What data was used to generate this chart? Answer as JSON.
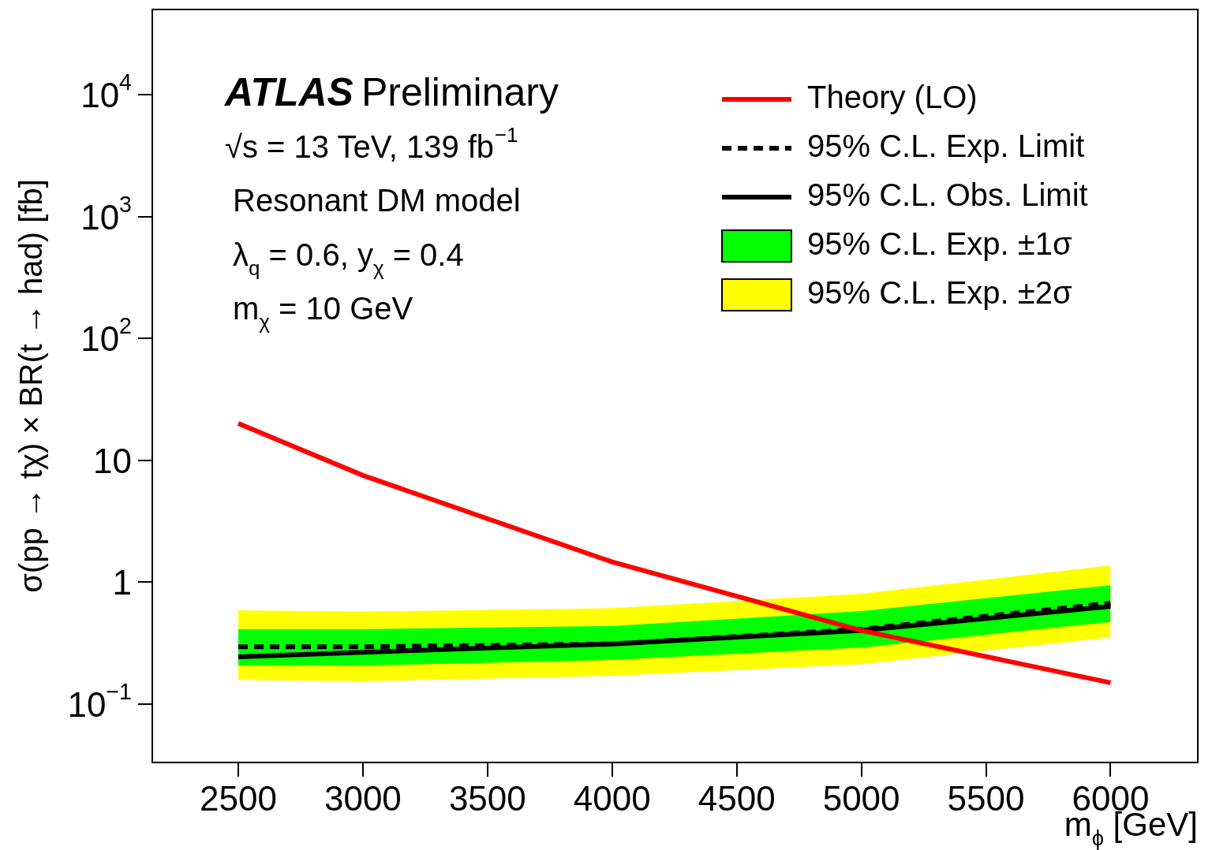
{
  "chart_data": {
    "type": "line",
    "xlabel": "m$_{ϕ}$ [GeV]",
    "ylabel": "σ(pp → tχ) × BR(t → had) [fb]",
    "x": [
      2500,
      3000,
      4000,
      5000,
      6000
    ],
    "series": [
      {
        "name": "Theory (LO)",
        "color": "#ff0000",
        "line_style": "solid",
        "values": [
          20,
          7.5,
          1.46,
          0.4,
          0.149
        ]
      },
      {
        "name": "95% C.L. Exp. Limit",
        "color": "#000000",
        "line_style": "dashed",
        "values": [
          0.294,
          0.294,
          0.31,
          0.41,
          0.67
        ]
      },
      {
        "name": "95% C.L. Obs. Limit",
        "color": "#000000",
        "line_style": "solid",
        "values": [
          0.243,
          0.265,
          0.31,
          0.4,
          0.63
        ]
      },
      {
        "name": "95% C.L. Exp. ±1σ",
        "type": "line",
        "color": "#00ff00",
        "values": [
          null,
          null,
          null,
          null,
          null
        ],
        "lower": [
          0.206,
          0.206,
          0.229,
          0.29,
          0.47
        ],
        "upper": [
          0.41,
          0.41,
          0.435,
          0.577,
          0.94
        ]
      },
      {
        "name": "95% C.L. Exp. ±2σ",
        "type": "line",
        "color": "#ffff00",
        "values": [
          null,
          null,
          null,
          null,
          null
        ],
        "lower": [
          0.157,
          0.153,
          0.17,
          0.212,
          0.352
        ],
        "upper": [
          0.585,
          0.57,
          0.61,
          0.8,
          1.37
        ]
      }
    ],
    "xlim": [
      2155,
      6350
    ],
    "xticks": [
      2500,
      3000,
      3500,
      4000,
      4500,
      5000,
      5500,
      6000
    ],
    "ylim": [
      0.033,
      50000
    ],
    "yticks": [
      {
        "value": 0.1,
        "label": "10$^{−1}$"
      },
      1,
      10,
      {
        "value": 100,
        "label": "10$^{2}$"
      },
      {
        "value": 1000,
        "label": "10$^{3}$"
      },
      {
        "value": 10000,
        "label": "10$^{4}$"
      }
    ],
    "log": "y",
    "grid": false,
    "legend": "top right",
    "marker": "none",
    "annotations": [
      "ATLAS Preliminary",
      "√s = 13 TeV, 139 fb$^{−1}$",
      "Resonant DM model",
      "λ$_{q}$ = 0.6, y$_{χ}$ = 0.4",
      "m$_{χ}$ = 10 GeV"
    ]
  }
}
